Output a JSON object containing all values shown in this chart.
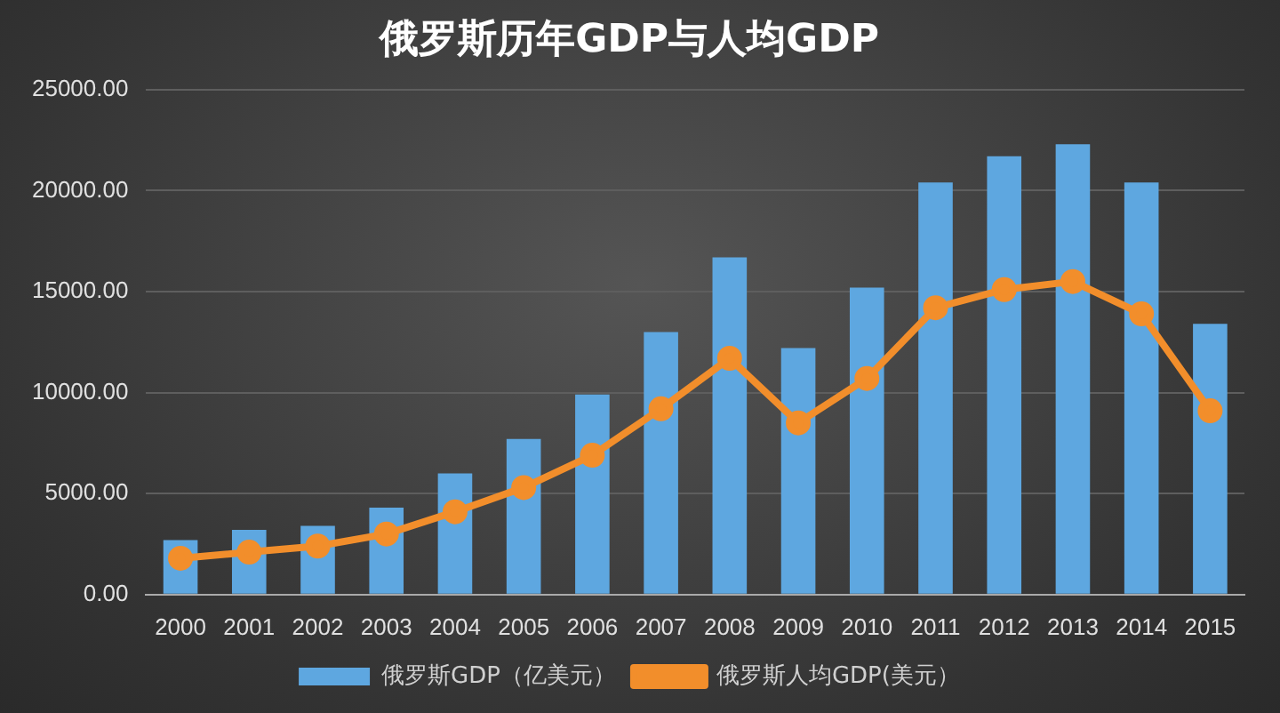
{
  "chart_data": {
    "type": "bar",
    "title": "俄罗斯历年GDP与人均GDP",
    "categories": [
      "2000",
      "2001",
      "2002",
      "2003",
      "2004",
      "2005",
      "2006",
      "2007",
      "2008",
      "2009",
      "2010",
      "2011",
      "2012",
      "2013",
      "2014",
      "2015"
    ],
    "series": [
      {
        "name": "俄罗斯GDP（亿美元）",
        "color": "#5ea7e0",
        "values": [
          2700,
          3200,
          3400,
          4300,
          6000,
          7700,
          9900,
          13000,
          16700,
          12200,
          15200,
          20400,
          21700,
          22300,
          20400,
          13400
        ]
      },
      {
        "name": "俄罗斯人均GDP(美元）",
        "type": "line",
        "color": "#f28e2b",
        "values": [
          1800,
          2100,
          2400,
          3000,
          4100,
          5300,
          6900,
          9200,
          11700,
          8500,
          10700,
          14200,
          15100,
          15500,
          13900,
          9100
        ]
      }
    ],
    "ylim": [
      0,
      25000
    ],
    "yticks": [
      {
        "value": 0,
        "label": "0.00"
      },
      {
        "value": 5000,
        "label": "5000.00"
      },
      {
        "value": 10000,
        "label": "10000.00"
      },
      {
        "value": 15000,
        "label": "15000.00"
      },
      {
        "value": 20000,
        "label": "20000.00"
      },
      {
        "value": 25000,
        "label": "25000.00"
      }
    ],
    "grid": "y",
    "legend": "bottom",
    "marker": "circle",
    "line_style": "solid"
  }
}
